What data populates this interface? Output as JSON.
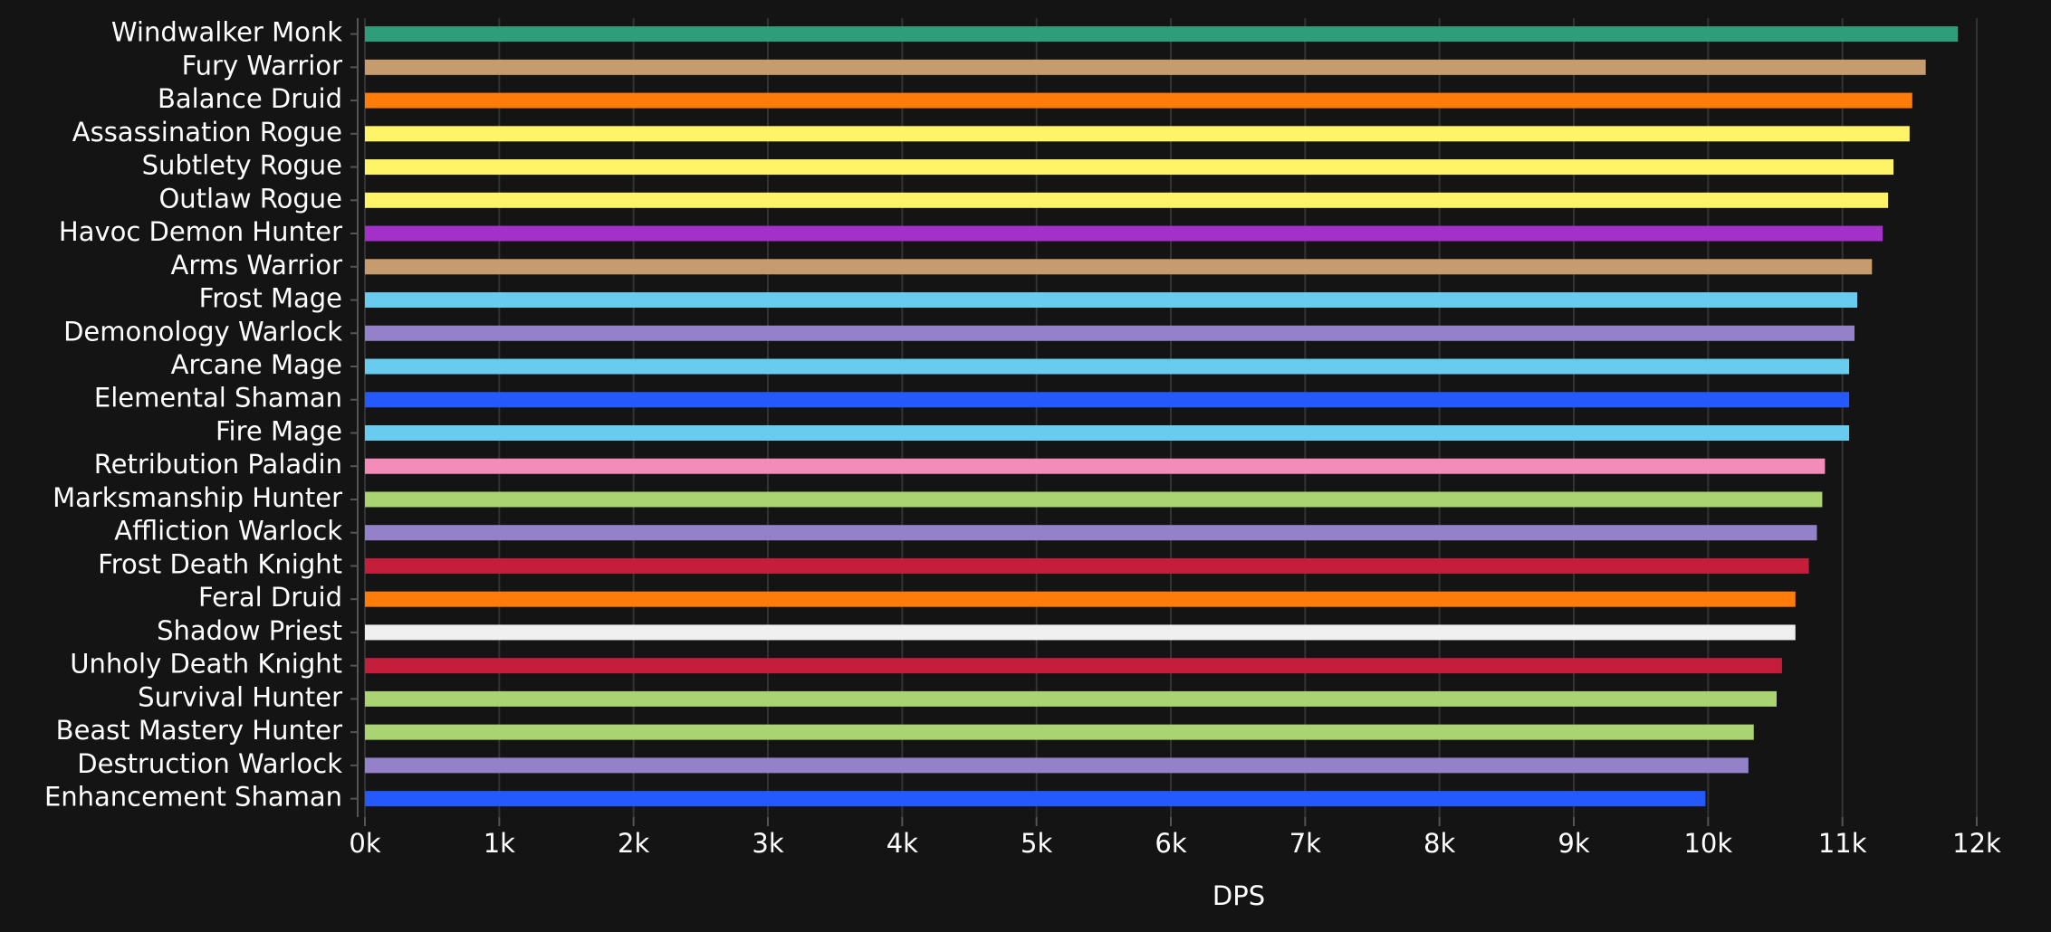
{
  "chart_data": {
    "type": "bar",
    "orientation": "horizontal",
    "x_label": "DPS",
    "categories": [
      "Windwalker Monk",
      "Fury Warrior",
      "Balance Druid",
      "Assassination Rogue",
      "Subtlety Rogue",
      "Outlaw Rogue",
      "Havoc Demon Hunter",
      "Arms Warrior",
      "Frost Mage",
      "Demonology Warlock",
      "Arcane Mage",
      "Elemental Shaman",
      "Fire Mage",
      "Retribution Paladin",
      "Marksmanship Hunter",
      "Affliction Warlock",
      "Frost Death Knight",
      "Feral Druid",
      "Shadow Priest",
      "Unholy Death Knight",
      "Survival Hunter",
      "Beast Mastery Hunter",
      "Destruction Warlock",
      "Enhancement Shaman"
    ],
    "values": [
      11860,
      11620,
      11520,
      11500,
      11380,
      11340,
      11300,
      11220,
      11110,
      11090,
      11050,
      11050,
      11050,
      10870,
      10850,
      10810,
      10750,
      10650,
      10650,
      10550,
      10510,
      10340,
      10300,
      9980
    ],
    "colors": [
      "#2e9e7a",
      "#c69b6d",
      "#ff7c0a",
      "#fff468",
      "#fff468",
      "#fff468",
      "#a330c9",
      "#c69b6d",
      "#68ccef",
      "#9382c9",
      "#68ccef",
      "#2459ff",
      "#68ccef",
      "#f48cba",
      "#aad372",
      "#9382c9",
      "#c41e3b",
      "#ff7c0a",
      "#f0f0f0",
      "#c41e3b",
      "#aad372",
      "#aad372",
      "#9382c9",
      "#2459ff"
    ],
    "xlim": [
      0,
      12000
    ],
    "xticks": [
      {
        "value": 0,
        "label": "0k"
      },
      {
        "value": 1000,
        "label": "1k"
      },
      {
        "value": 2000,
        "label": "2k"
      },
      {
        "value": 3000,
        "label": "3k"
      },
      {
        "value": 4000,
        "label": "4k"
      },
      {
        "value": 5000,
        "label": "5k"
      },
      {
        "value": 6000,
        "label": "6k"
      },
      {
        "value": 7000,
        "label": "7k"
      },
      {
        "value": 8000,
        "label": "8k"
      },
      {
        "value": 9000,
        "label": "9k"
      },
      {
        "value": 10000,
        "label": "10k"
      },
      {
        "value": 11000,
        "label": "11k"
      },
      {
        "value": 12000,
        "label": "12k"
      }
    ],
    "grid": true
  }
}
